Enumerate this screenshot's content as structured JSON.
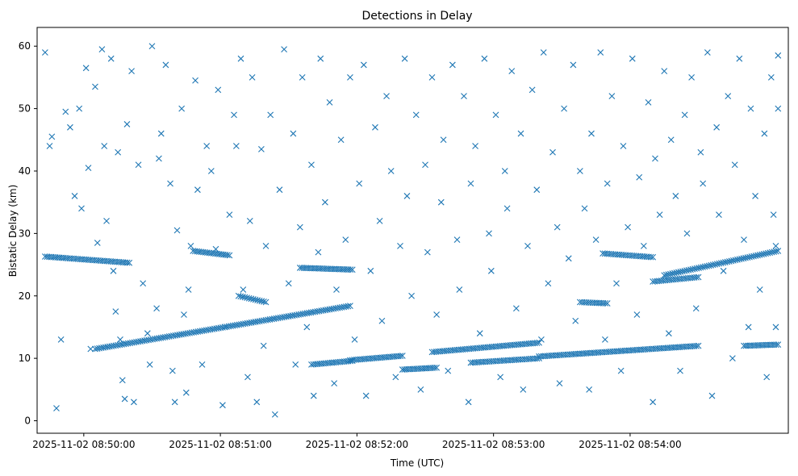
{
  "chart_data": {
    "type": "scatter",
    "title": "Detections in Delay",
    "xlabel": "Time (UTC)",
    "ylabel": "Bistatic Delay (km)",
    "x_unit": "seconds after 2025-11-02 08:50:00 UTC",
    "xlim": [
      -20.5,
      309.5
    ],
    "ylim": [
      -2.0,
      63.0
    ],
    "x_ticks": [
      0,
      60,
      120,
      180,
      240
    ],
    "x_tick_labels": [
      "2025-11-02 08:50:00",
      "2025-11-02 08:51:00",
      "2025-11-02 08:52:00",
      "2025-11-02 08:53:00",
      "2025-11-02 08:54:00"
    ],
    "y_ticks": [
      0,
      10,
      20,
      30,
      40,
      50,
      60
    ],
    "y_tick_labels": [
      "0",
      "10",
      "20",
      "30",
      "40",
      "50",
      "60"
    ],
    "marker": "x",
    "color": "#1f77b4",
    "grid": false,
    "legend": "none",
    "tracks": [
      {
        "x_start": -17,
        "x_end": 20,
        "y_start": 26.3,
        "y_end": 25.3
      },
      {
        "x_start": 5,
        "x_end": 117,
        "y_start": 11.5,
        "y_end": 18.4
      },
      {
        "x_start": 48,
        "x_end": 64,
        "y_start": 27.2,
        "y_end": 26.5
      },
      {
        "x_start": 68,
        "x_end": 80,
        "y_start": 20.0,
        "y_end": 19.0
      },
      {
        "x_start": 95,
        "x_end": 118,
        "y_start": 24.5,
        "y_end": 24.2
      },
      {
        "x_start": 100,
        "x_end": 118,
        "y_start": 9.0,
        "y_end": 9.6
      },
      {
        "x_start": 117,
        "x_end": 140,
        "y_start": 9.7,
        "y_end": 10.4
      },
      {
        "x_start": 140,
        "x_end": 155,
        "y_start": 8.2,
        "y_end": 8.5
      },
      {
        "x_start": 153,
        "x_end": 200,
        "y_start": 11.0,
        "y_end": 12.5
      },
      {
        "x_start": 170,
        "x_end": 200,
        "y_start": 9.3,
        "y_end": 10.0
      },
      {
        "x_start": 200,
        "x_end": 270,
        "y_start": 10.3,
        "y_end": 12.0
      },
      {
        "x_start": 218,
        "x_end": 230,
        "y_start": 19.0,
        "y_end": 18.8
      },
      {
        "x_start": 228,
        "x_end": 250,
        "y_start": 26.8,
        "y_end": 26.2
      },
      {
        "x_start": 250,
        "x_end": 270,
        "y_start": 22.3,
        "y_end": 23.0
      },
      {
        "x_start": 255,
        "x_end": 305,
        "y_start": 23.3,
        "y_end": 27.2
      },
      {
        "x_start": 290,
        "x_end": 305,
        "y_start": 12.0,
        "y_end": 12.2
      }
    ],
    "scattered_points": [
      [
        -17,
        59
      ],
      [
        -15,
        44
      ],
      [
        -14,
        45.5
      ],
      [
        -12,
        2
      ],
      [
        -10,
        13
      ],
      [
        -8,
        49.5
      ],
      [
        -6,
        47
      ],
      [
        -4,
        36
      ],
      [
        -2,
        50
      ],
      [
        -1,
        34
      ],
      [
        1,
        56.5
      ],
      [
        2,
        40.5
      ],
      [
        3,
        11.5
      ],
      [
        5,
        53.5
      ],
      [
        6,
        28.5
      ],
      [
        8,
        59.5
      ],
      [
        9,
        44
      ],
      [
        10,
        32
      ],
      [
        12,
        58
      ],
      [
        13,
        24
      ],
      [
        14,
        17.5
      ],
      [
        15,
        43
      ],
      [
        16,
        13
      ],
      [
        17,
        6.5
      ],
      [
        18,
        3.5
      ],
      [
        19,
        47.5
      ],
      [
        21,
        56
      ],
      [
        22,
        3
      ],
      [
        24,
        41
      ],
      [
        26,
        22
      ],
      [
        28,
        14
      ],
      [
        29,
        9
      ],
      [
        30,
        60
      ],
      [
        32,
        18
      ],
      [
        33,
        42
      ],
      [
        34,
        46
      ],
      [
        36,
        57
      ],
      [
        38,
        38
      ],
      [
        39,
        8
      ],
      [
        40,
        3
      ],
      [
        41,
        30.5
      ],
      [
        43,
        50
      ],
      [
        44,
        17
      ],
      [
        45,
        4.5
      ],
      [
        46,
        21
      ],
      [
        47,
        28
      ],
      [
        49,
        54.5
      ],
      [
        50,
        37
      ],
      [
        52,
        9
      ],
      [
        54,
        44
      ],
      [
        56,
        40
      ],
      [
        58,
        27.5
      ],
      [
        59,
        53
      ],
      [
        61,
        2.5
      ],
      [
        62,
        15
      ],
      [
        64,
        33
      ],
      [
        66,
        49
      ],
      [
        67,
        44
      ],
      [
        69,
        58
      ],
      [
        70,
        21
      ],
      [
        72,
        7
      ],
      [
        73,
        32
      ],
      [
        74,
        55
      ],
      [
        76,
        3
      ],
      [
        78,
        43.5
      ],
      [
        79,
        12
      ],
      [
        80,
        28
      ],
      [
        82,
        49
      ],
      [
        84,
        1
      ],
      [
        86,
        37
      ],
      [
        88,
        59.5
      ],
      [
        90,
        22
      ],
      [
        92,
        46
      ],
      [
        93,
        9
      ],
      [
        95,
        31
      ],
      [
        96,
        55
      ],
      [
        98,
        15
      ],
      [
        100,
        41
      ],
      [
        101,
        4
      ],
      [
        103,
        27
      ],
      [
        104,
        58
      ],
      [
        106,
        35
      ],
      [
        108,
        51
      ],
      [
        110,
        6
      ],
      [
        111,
        21
      ],
      [
        113,
        45
      ],
      [
        115,
        29
      ],
      [
        117,
        55
      ],
      [
        119,
        13
      ],
      [
        121,
        38
      ],
      [
        123,
        57
      ],
      [
        124,
        4
      ],
      [
        126,
        24
      ],
      [
        128,
        47
      ],
      [
        130,
        32
      ],
      [
        131,
        16
      ],
      [
        133,
        52
      ],
      [
        135,
        40
      ],
      [
        137,
        7
      ],
      [
        139,
        28
      ],
      [
        141,
        58
      ],
      [
        142,
        36
      ],
      [
        144,
        20
      ],
      [
        146,
        49
      ],
      [
        148,
        5
      ],
      [
        150,
        41
      ],
      [
        151,
        27
      ],
      [
        153,
        55
      ],
      [
        155,
        17
      ],
      [
        157,
        35
      ],
      [
        158,
        45
      ],
      [
        160,
        8
      ],
      [
        162,
        57
      ],
      [
        164,
        29
      ],
      [
        165,
        21
      ],
      [
        167,
        52
      ],
      [
        169,
        3
      ],
      [
        170,
        38
      ],
      [
        172,
        44
      ],
      [
        174,
        14
      ],
      [
        176,
        58
      ],
      [
        178,
        30
      ],
      [
        179,
        24
      ],
      [
        181,
        49
      ],
      [
        183,
        7
      ],
      [
        185,
        40
      ],
      [
        186,
        34
      ],
      [
        188,
        56
      ],
      [
        190,
        18
      ],
      [
        192,
        46
      ],
      [
        193,
        5
      ],
      [
        195,
        28
      ],
      [
        197,
        53
      ],
      [
        199,
        37
      ],
      [
        201,
        13
      ],
      [
        202,
        59
      ],
      [
        204,
        22
      ],
      [
        206,
        43
      ],
      [
        208,
        31
      ],
      [
        209,
        6
      ],
      [
        211,
        50
      ],
      [
        213,
        26
      ],
      [
        215,
        57
      ],
      [
        216,
        16
      ],
      [
        218,
        40
      ],
      [
        220,
        34
      ],
      [
        222,
        5
      ],
      [
        223,
        46
      ],
      [
        225,
        29
      ],
      [
        227,
        59
      ],
      [
        229,
        13
      ],
      [
        230,
        38
      ],
      [
        232,
        52
      ],
      [
        234,
        22
      ],
      [
        236,
        8
      ],
      [
        237,
        44
      ],
      [
        239,
        31
      ],
      [
        241,
        58
      ],
      [
        243,
        17
      ],
      [
        244,
        39
      ],
      [
        246,
        28
      ],
      [
        248,
        51
      ],
      [
        250,
        3
      ],
      [
        251,
        42
      ],
      [
        253,
        33
      ],
      [
        255,
        56
      ],
      [
        257,
        14
      ],
      [
        258,
        45
      ],
      [
        260,
        36
      ],
      [
        262,
        8
      ],
      [
        264,
        49
      ],
      [
        265,
        30
      ],
      [
        267,
        55
      ],
      [
        269,
        18
      ],
      [
        271,
        43
      ],
      [
        272,
        38
      ],
      [
        274,
        59
      ],
      [
        276,
        4
      ],
      [
        278,
        47
      ],
      [
        279,
        33
      ],
      [
        281,
        24
      ],
      [
        283,
        52
      ],
      [
        285,
        10
      ],
      [
        286,
        41
      ],
      [
        288,
        58
      ],
      [
        290,
        29
      ],
      [
        292,
        15
      ],
      [
        293,
        50
      ],
      [
        295,
        36
      ],
      [
        297,
        21
      ],
      [
        299,
        46
      ],
      [
        300,
        7
      ],
      [
        302,
        55
      ],
      [
        303,
        33
      ],
      [
        305,
        50
      ],
      [
        305,
        58.5
      ],
      [
        304,
        15
      ],
      [
        304,
        28
      ]
    ]
  }
}
